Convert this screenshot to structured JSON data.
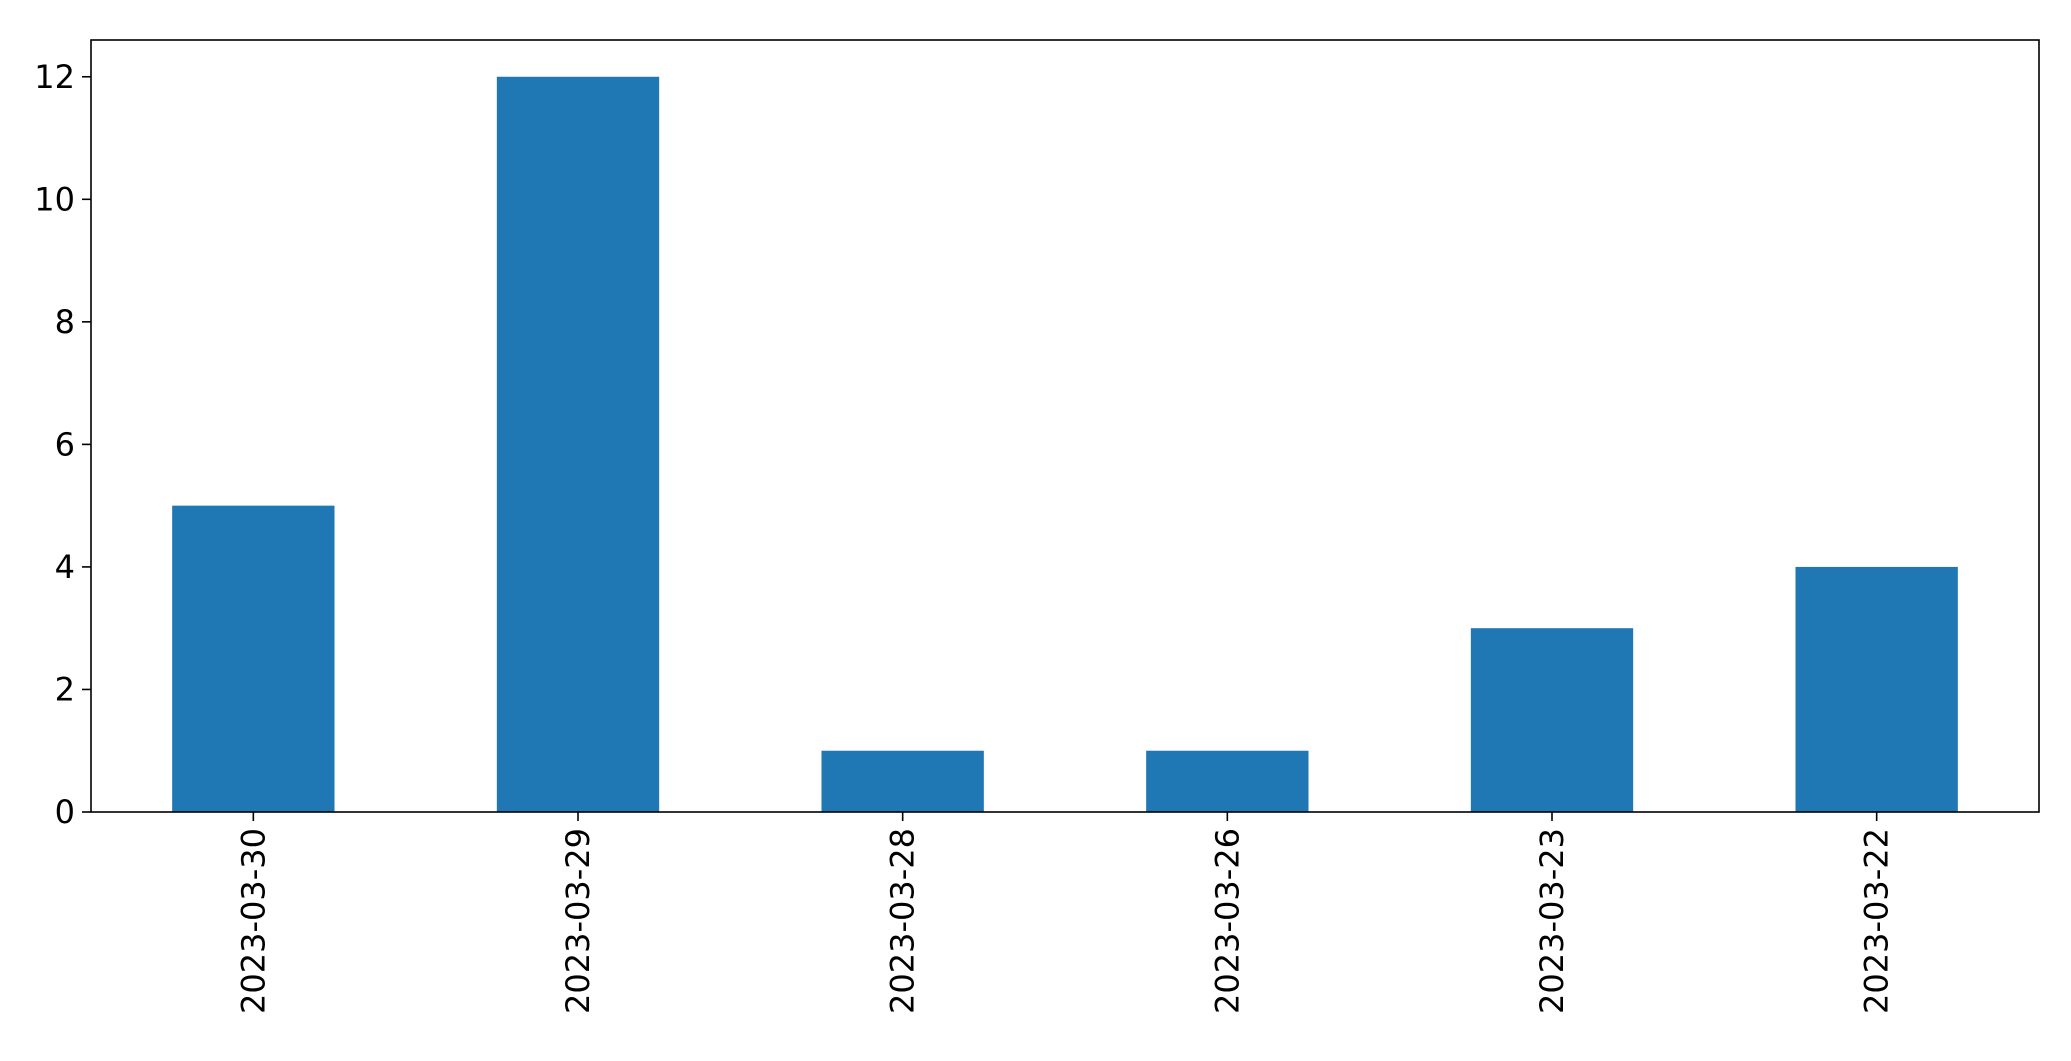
{
  "chart_data": {
    "type": "bar",
    "categories": [
      "2023-03-30",
      "2023-03-29",
      "2023-03-28",
      "2023-03-26",
      "2023-03-23",
      "2023-03-22"
    ],
    "values": [
      5,
      12,
      1,
      1,
      3,
      4
    ],
    "title": "",
    "xlabel": "",
    "ylabel": "",
    "ylim": [
      0,
      12.6
    ],
    "yticks": [
      0,
      2,
      4,
      6,
      8,
      10,
      12
    ],
    "ytick_labels": [
      "0",
      "2",
      "4",
      "6",
      "8",
      "10",
      "12"
    ],
    "grid": false,
    "legend": "none",
    "bar_color": "#1f77b4"
  }
}
